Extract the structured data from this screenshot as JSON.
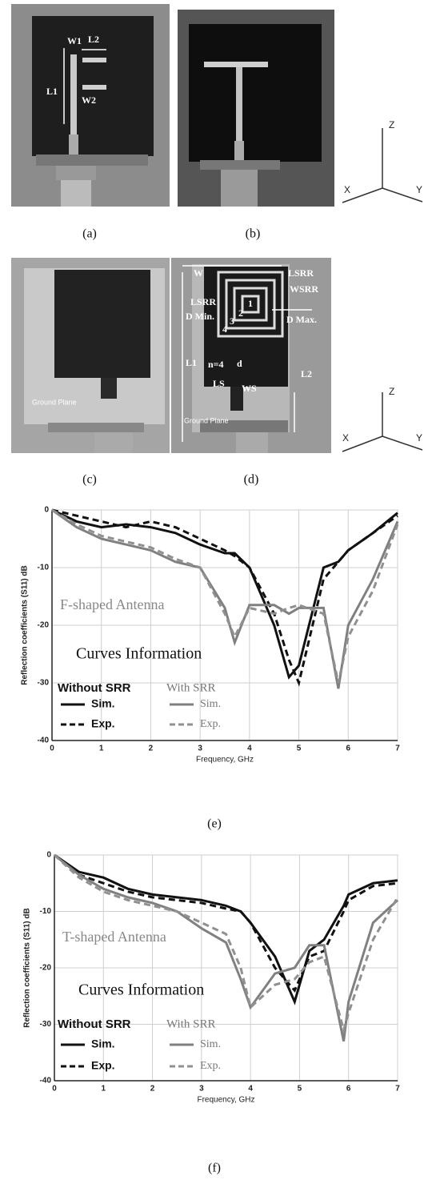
{
  "figure": {
    "panels": [
      {
        "label": "(a)",
        "annotations": [
          "W1",
          "L2",
          "L1",
          "W2"
        ]
      },
      {
        "label": "(b)"
      },
      {
        "label": "(c)",
        "annotations": [
          "Ground Plane"
        ]
      },
      {
        "label": "(d)",
        "annotations": [
          "W",
          "LSRR",
          "WSRR",
          "LSRR",
          "D Min.",
          "D Max.",
          "L1",
          "n=4",
          "d",
          "LS",
          "WS",
          "L2",
          "Ground Plane",
          "1",
          "2",
          "3",
          "4"
        ]
      }
    ],
    "axes_icons": [
      {
        "z": "Z",
        "x": "X",
        "y": "Y"
      },
      {
        "z": "Z",
        "x": "X",
        "y": "Y"
      }
    ]
  },
  "chart_data": [
    {
      "type": "line",
      "caption": "(e)",
      "ylabel": "Reflection coefficients (S11) dB",
      "xlabel": "Frequency, GHz",
      "annotation": "F-shaped Antenna",
      "legend_title": "Curves Information",
      "legend_groups": [
        "Without SRR",
        "With SRR"
      ],
      "x": [
        0,
        0.5,
        1,
        1.5,
        2,
        2.5,
        3,
        3.5,
        3.7,
        4,
        4.5,
        4.8,
        5,
        5.5,
        5.8,
        6,
        6.5,
        7
      ],
      "series": [
        {
          "name": "Sim.",
          "color": "#111111",
          "dashed": false,
          "values": [
            0,
            -2,
            -3,
            -2.5,
            -3,
            -4,
            -6,
            -7.5,
            -7.5,
            -10,
            -20,
            -29,
            -27,
            -10,
            -9,
            -7,
            -4,
            -0.5
          ]
        },
        {
          "name": "Exp.",
          "color": "#111111",
          "dashed": true,
          "values": [
            0,
            -1,
            -2,
            -3,
            -2,
            -3,
            -5,
            -7,
            -8,
            -10,
            -18,
            -26,
            -30,
            -12,
            -9,
            -7,
            -4,
            -1
          ]
        },
        {
          "name": "Sim.",
          "color": "#808080",
          "dashed": false,
          "values": [
            0,
            -3,
            -5,
            -6,
            -7,
            -9,
            -10,
            -17,
            -23,
            -16.5,
            -16.5,
            -18,
            -17,
            -17,
            -31,
            -20,
            -12,
            -2
          ]
        },
        {
          "name": "Exp.",
          "color": "#909090",
          "dashed": true,
          "values": [
            0,
            -2.5,
            -4.5,
            -5.5,
            -6.5,
            -8.5,
            -10,
            -18,
            -22,
            -17,
            -18,
            -17,
            -16.5,
            -18,
            -30,
            -22,
            -14,
            -2.5
          ]
        }
      ],
      "xlim": [
        0,
        7
      ],
      "ylim": [
        -40,
        0
      ],
      "xticks": [
        0,
        1,
        2,
        3,
        4,
        5,
        6,
        7
      ],
      "yticks": [
        -40,
        -30,
        -20,
        -10,
        0
      ],
      "grid": true
    },
    {
      "type": "line",
      "caption": "(f)",
      "ylabel": "Reflection coefficients (S11) dB",
      "xlabel": "Frequency, GHz",
      "annotation": "T-shaped Antenna",
      "legend_title": "Curves Information",
      "legend_groups": [
        "Without SRR",
        "With SRR"
      ],
      "x": [
        0,
        0.5,
        1,
        1.5,
        2,
        2.5,
        3,
        3.5,
        3.8,
        4,
        4.5,
        4.9,
        5.2,
        5.5,
        5.9,
        6,
        6.5,
        7
      ],
      "series": [
        {
          "name": "Sim.",
          "color": "#111111",
          "dashed": false,
          "values": [
            0,
            -3,
            -4,
            -6,
            -7,
            -7.5,
            -8,
            -9,
            -10,
            -12,
            -18,
            -26,
            -17,
            -15,
            -9,
            -7,
            -5,
            -4.5
          ]
        },
        {
          "name": "Exp.",
          "color": "#111111",
          "dashed": true,
          "values": [
            0,
            -3.5,
            -5,
            -6.5,
            -7.5,
            -8,
            -8.5,
            -9.5,
            -10,
            -12,
            -20,
            -24,
            -18,
            -17,
            -10,
            -8,
            -5.5,
            -5
          ]
        },
        {
          "name": "Sim.",
          "color": "#808080",
          "dashed": false,
          "values": [
            0,
            -3.5,
            -6,
            -7.5,
            -8.5,
            -10,
            -13,
            -15.5,
            -22,
            -27,
            -21,
            -20,
            -16,
            -16,
            -33,
            -26,
            -12,
            -8
          ]
        },
        {
          "name": "Exp.",
          "color": "#909090",
          "dashed": true,
          "values": [
            0,
            -4,
            -6.5,
            -8,
            -9,
            -10,
            -12,
            -14,
            -20,
            -27,
            -23,
            -22,
            -19,
            -18,
            -31,
            -28,
            -15,
            -7.5
          ]
        }
      ],
      "xlim": [
        0,
        7
      ],
      "ylim": [
        -40,
        0
      ],
      "xticks": [
        0,
        1,
        2,
        3,
        4,
        5,
        6,
        7
      ],
      "yticks": [
        -40,
        -30,
        -20,
        -10,
        0
      ],
      "grid": true
    }
  ]
}
